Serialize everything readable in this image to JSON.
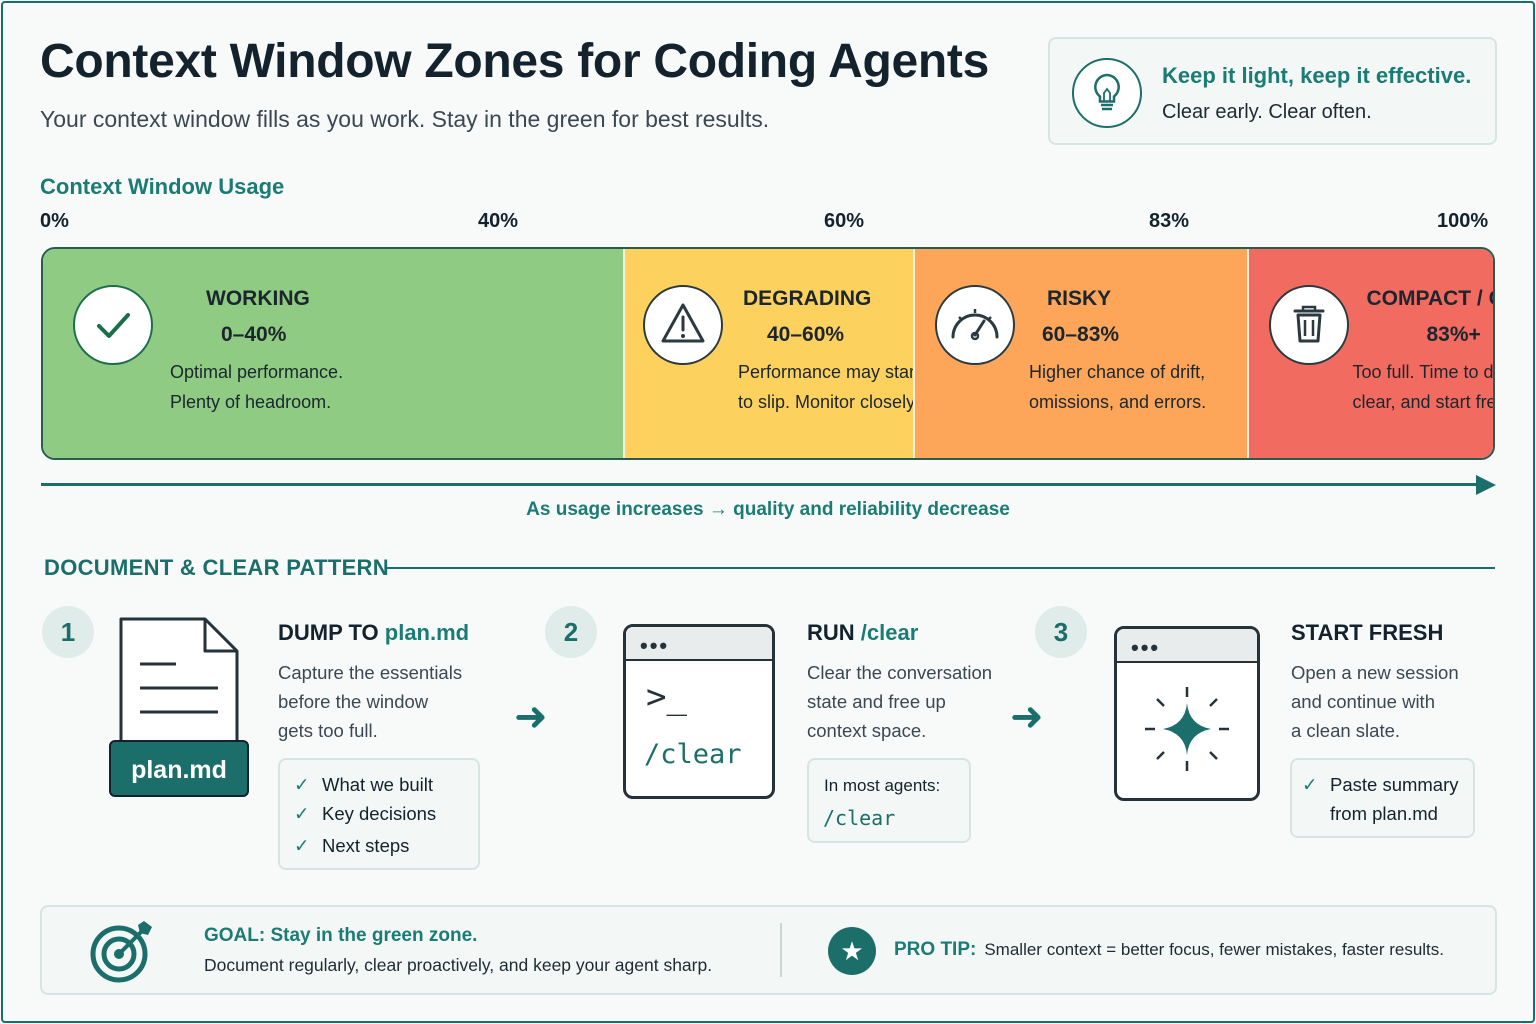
{
  "header": {
    "title": "Context Window Zones for Coding Agents",
    "subtitle": "Your context window fills as you work. Stay in the green for best results."
  },
  "tip": {
    "title": "Keep it light, keep it effective.",
    "text": "Clear early. Clear often.",
    "icon": "lightbulb-icon"
  },
  "usage": {
    "title": "Context Window Usage",
    "ticks": [
      "0%",
      "40%",
      "60%",
      "83%",
      "100%"
    ],
    "trend_text": "As usage increases → quality and reliability decrease"
  },
  "zones": [
    {
      "name": "WORKING",
      "range": "0–40%",
      "desc1": "Optimal performance.",
      "desc2": "Plenty of headroom.",
      "from": 0,
      "to": 40,
      "color": "#8fcb82",
      "icon": "checkmark-icon"
    },
    {
      "name": "DEGRADING",
      "range": "40–60%",
      "desc1": "Performance may start",
      "desc2": "to slip. Monitor closely.",
      "from": 40,
      "to": 60,
      "color": "#fdd15e",
      "icon": "warning-icon"
    },
    {
      "name": "RISKY",
      "range": "60–83%",
      "desc1": "Higher chance of drift,",
      "desc2": "omissions, and errors.",
      "from": 60,
      "to": 83,
      "color": "#fda65a",
      "icon": "gauge-icon"
    },
    {
      "name": "COMPACT / CLEAR",
      "range": "83%+",
      "desc1": "Too full. Time to document,",
      "desc2": "clear, and start fresh.",
      "from": 83,
      "to": 100,
      "color": "#f26b60",
      "icon": "trash-icon"
    }
  ],
  "pattern": {
    "title": "DOCUMENT & CLEAR PATTERN",
    "steps": [
      {
        "num": "1",
        "title_prefix": "DUMP TO ",
        "title_accent": "plan.md",
        "desc": [
          "Capture the essentials",
          "before the window",
          "gets too full."
        ],
        "file_label": "plan.md",
        "checks": [
          "What we built",
          "Key decisions",
          "Next steps"
        ]
      },
      {
        "num": "2",
        "title_prefix": "RUN ",
        "title_accent": "/clear",
        "desc": [
          "Clear the conversation",
          "state and free up",
          "context space."
        ],
        "terminal_prompt": ">_",
        "terminal_command": "/clear",
        "hint_label": "In most agents:",
        "hint_code": "/clear"
      },
      {
        "num": "3",
        "title_prefix": "START FRESH",
        "title_accent": "",
        "desc": [
          "Open a new session",
          "and continue with",
          "a clean slate."
        ],
        "checks": [
          "Paste summary",
          "from plan.md"
        ]
      }
    ]
  },
  "footer": {
    "goal_title": "GOAL: Stay in the green zone.",
    "goal_text": "Document regularly, clear proactively, and keep your agent sharp.",
    "protip_label": "PRO TIP:",
    "protip_text": "Smaller context = better focus, fewer mistakes, faster results."
  },
  "colors": {
    "accent": "#1b6e6a",
    "working": "#8fcb82",
    "degrading": "#fdd15e",
    "risky": "#fda65a",
    "compact": "#f26b60"
  }
}
